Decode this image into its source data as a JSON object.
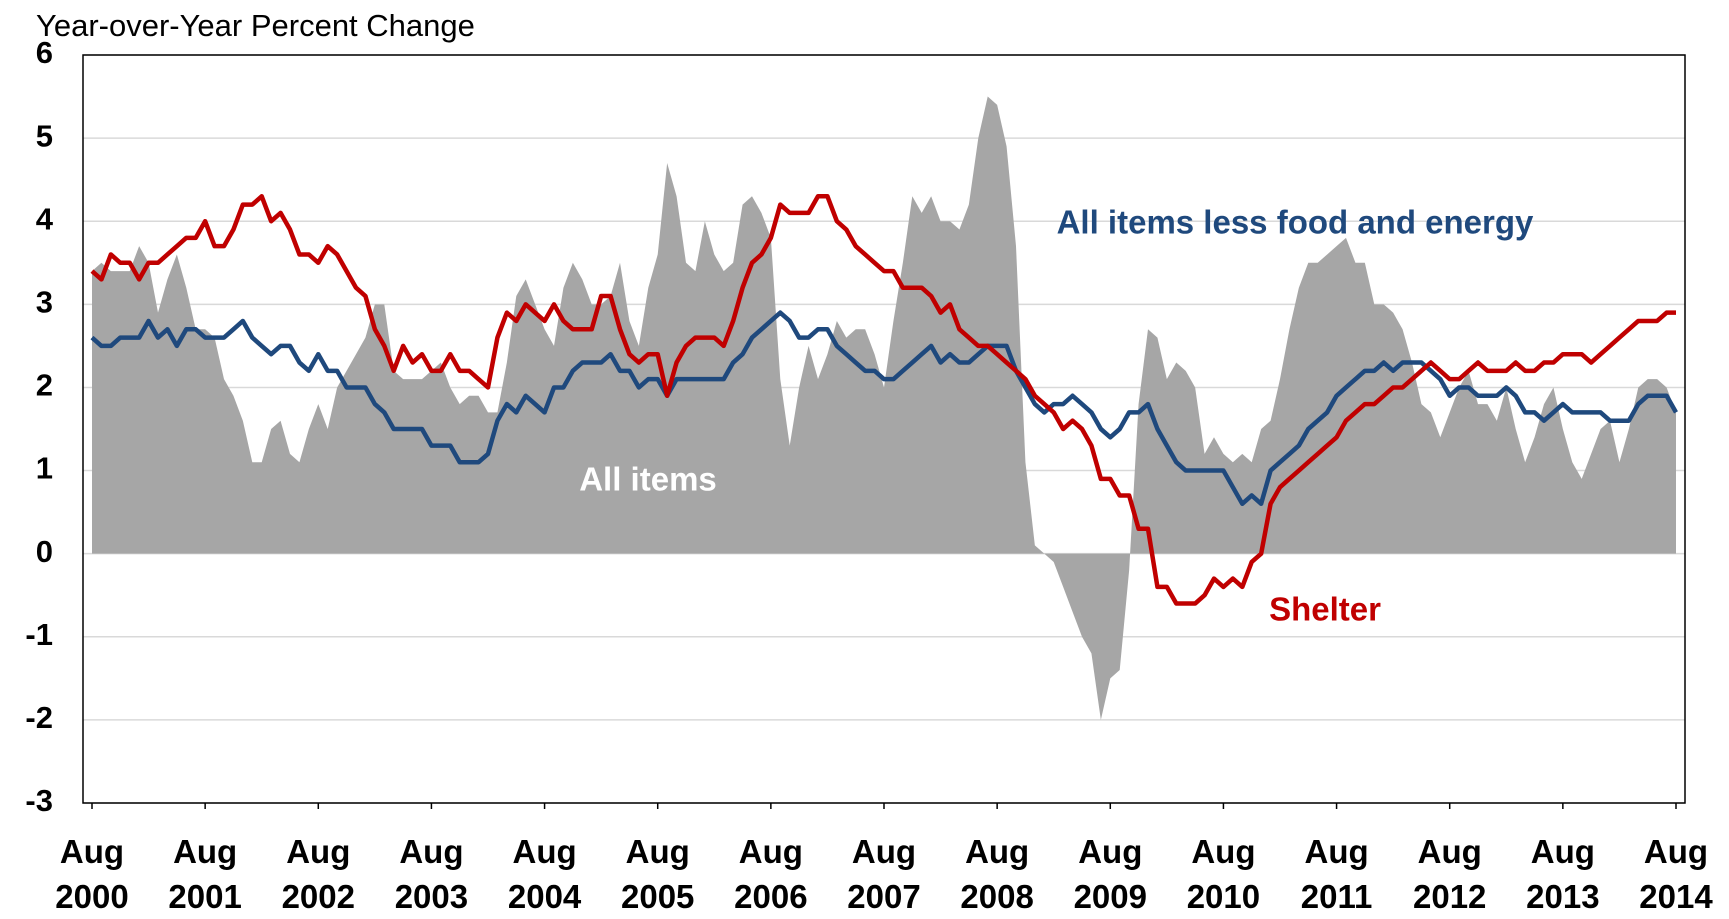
{
  "chart_data": {
    "type": "line",
    "y_axis_label": "Year-over-Year Percent Change",
    "x": [
      "Aug 2000",
      "Sep 2000",
      "Oct 2000",
      "Nov 2000",
      "Dec 2000",
      "Jan 2001",
      "Feb 2001",
      "Mar 2001",
      "Apr 2001",
      "May 2001",
      "Jun 2001",
      "Jul 2001",
      "Aug 2001",
      "Sep 2001",
      "Oct 2001",
      "Nov 2001",
      "Dec 2001",
      "Jan 2002",
      "Feb 2002",
      "Mar 2002",
      "Apr 2002",
      "May 2002",
      "Jun 2002",
      "Jul 2002",
      "Aug 2002",
      "Sep 2002",
      "Oct 2002",
      "Nov 2002",
      "Dec 2002",
      "Jan 2003",
      "Feb 2003",
      "Mar 2003",
      "Apr 2003",
      "May 2003",
      "Jun 2003",
      "Jul 2003",
      "Aug 2003",
      "Sep 2003",
      "Oct 2003",
      "Nov 2003",
      "Dec 2003",
      "Jan 2004",
      "Feb 2004",
      "Mar 2004",
      "Apr 2004",
      "May 2004",
      "Jun 2004",
      "Jul 2004",
      "Aug 2004",
      "Sep 2004",
      "Oct 2004",
      "Nov 2004",
      "Dec 2004",
      "Jan 2005",
      "Feb 2005",
      "Mar 2005",
      "Apr 2005",
      "May 2005",
      "Jun 2005",
      "Jul 2005",
      "Aug 2005",
      "Sep 2005",
      "Oct 2005",
      "Nov 2005",
      "Dec 2005",
      "Jan 2006",
      "Feb 2006",
      "Mar 2006",
      "Apr 2006",
      "May 2006",
      "Jun 2006",
      "Jul 2006",
      "Aug 2006",
      "Sep 2006",
      "Oct 2006",
      "Nov 2006",
      "Dec 2006",
      "Jan 2007",
      "Feb 2007",
      "Mar 2007",
      "Apr 2007",
      "May 2007",
      "Jun 2007",
      "Jul 2007",
      "Aug 2007",
      "Sep 2007",
      "Oct 2007",
      "Nov 2007",
      "Dec 2007",
      "Jan 2008",
      "Feb 2008",
      "Mar 2008",
      "Apr 2008",
      "May 2008",
      "Jun 2008",
      "Jul 2008",
      "Aug 2008",
      "Sep 2008",
      "Oct 2008",
      "Nov 2008",
      "Dec 2008",
      "Jan 2009",
      "Feb 2009",
      "Mar 2009",
      "Apr 2009",
      "May 2009",
      "Jun 2009",
      "Jul 2009",
      "Aug 2009",
      "Sep 2009",
      "Oct 2009",
      "Nov 2009",
      "Dec 2009",
      "Jan 2010",
      "Feb 2010",
      "Mar 2010",
      "Apr 2010",
      "May 2010",
      "Jun 2010",
      "Jul 2010",
      "Aug 2010",
      "Sep 2010",
      "Oct 2010",
      "Nov 2010",
      "Dec 2010",
      "Jan 2011",
      "Feb 2011",
      "Mar 2011",
      "Apr 2011",
      "May 2011",
      "Jun 2011",
      "Jul 2011",
      "Aug 2011",
      "Sep 2011",
      "Oct 2011",
      "Nov 2011",
      "Dec 2011",
      "Jan 2012",
      "Feb 2012",
      "Mar 2012",
      "Apr 2012",
      "May 2012",
      "Jun 2012",
      "Jul 2012",
      "Aug 2012",
      "Sep 2012",
      "Oct 2012",
      "Nov 2012",
      "Dec 2012",
      "Jan 2013",
      "Feb 2013",
      "Mar 2013",
      "Apr 2013",
      "May 2013",
      "Jun 2013",
      "Jul 2013",
      "Aug 2013",
      "Sep 2013",
      "Oct 2013",
      "Nov 2013",
      "Dec 2013",
      "Jan 2014",
      "Feb 2014",
      "Mar 2014",
      "Apr 2014",
      "May 2014",
      "Jun 2014",
      "Jul 2014",
      "Aug 2014"
    ],
    "xticks": [
      "Aug 2000",
      "Aug 2001",
      "Aug 2002",
      "Aug 2003",
      "Aug 2004",
      "Aug 2005",
      "Aug 2006",
      "Aug 2007",
      "Aug 2008",
      "Aug 2009",
      "Aug 2010",
      "Aug 2011",
      "Aug 2012",
      "Aug 2013",
      "Aug 2014"
    ],
    "ylim": [
      -3,
      6
    ],
    "yticks": [
      -3,
      -2,
      -1,
      0,
      1,
      2,
      3,
      4,
      5,
      6
    ],
    "grid": true,
    "series": [
      {
        "name": "All items",
        "style": "area",
        "color": "#a6a6a6",
        "label_color": "#ffffff",
        "values": [
          3.4,
          3.5,
          3.4,
          3.4,
          3.4,
          3.7,
          3.5,
          2.9,
          3.3,
          3.6,
          3.2,
          2.7,
          2.7,
          2.6,
          2.1,
          1.9,
          1.6,
          1.1,
          1.1,
          1.5,
          1.6,
          1.2,
          1.1,
          1.5,
          1.8,
          1.5,
          2.0,
          2.2,
          2.4,
          2.6,
          3.0,
          3.0,
          2.2,
          2.1,
          2.1,
          2.1,
          2.2,
          2.3,
          2.0,
          1.8,
          1.9,
          1.9,
          1.7,
          1.7,
          2.3,
          3.1,
          3.3,
          3.0,
          2.7,
          2.5,
          3.2,
          3.5,
          3.3,
          3.0,
          3.0,
          3.1,
          3.5,
          2.8,
          2.5,
          3.2,
          3.6,
          4.7,
          4.3,
          3.5,
          3.4,
          4.0,
          3.6,
          3.4,
          3.5,
          4.2,
          4.3,
          4.1,
          3.8,
          2.1,
          1.3,
          2.0,
          2.5,
          2.1,
          2.4,
          2.8,
          2.6,
          2.7,
          2.7,
          2.4,
          2.0,
          2.8,
          3.5,
          4.3,
          4.1,
          4.3,
          4.0,
          4.0,
          3.9,
          4.2,
          5.0,
          5.5,
          5.4,
          4.9,
          3.7,
          1.1,
          0.1,
          0.0,
          -0.1,
          -0.4,
          -0.7,
          -1.0,
          -1.2,
          -2.0,
          -1.5,
          -1.4,
          -0.2,
          1.8,
          2.7,
          2.6,
          2.1,
          2.3,
          2.2,
          2.0,
          1.2,
          1.4,
          1.2,
          1.1,
          1.2,
          1.1,
          1.5,
          1.6,
          2.1,
          2.7,
          3.2,
          3.5,
          3.5,
          3.6,
          3.7,
          3.8,
          3.5,
          3.5,
          3.0,
          3.0,
          2.9,
          2.7,
          2.3,
          1.8,
          1.7,
          1.4,
          1.7,
          2.0,
          2.2,
          1.8,
          1.8,
          1.6,
          2.0,
          1.5,
          1.1,
          1.4,
          1.8,
          2.0,
          1.5,
          1.1,
          0.9,
          1.2,
          1.5,
          1.6,
          1.1,
          1.5,
          2.0,
          2.1,
          2.1,
          2.0,
          1.7
        ]
      },
      {
        "name": "All items less food and energy",
        "style": "line",
        "color": "#1f497d",
        "label_color": "#1f497d",
        "values": [
          2.6,
          2.5,
          2.5,
          2.6,
          2.6,
          2.6,
          2.8,
          2.6,
          2.7,
          2.5,
          2.7,
          2.7,
          2.6,
          2.6,
          2.6,
          2.7,
          2.8,
          2.6,
          2.5,
          2.4,
          2.5,
          2.5,
          2.3,
          2.2,
          2.4,
          2.2,
          2.2,
          2.0,
          2.0,
          2.0,
          1.8,
          1.7,
          1.5,
          1.5,
          1.5,
          1.5,
          1.3,
          1.3,
          1.3,
          1.1,
          1.1,
          1.1,
          1.2,
          1.6,
          1.8,
          1.7,
          1.9,
          1.8,
          1.7,
          2.0,
          2.0,
          2.2,
          2.3,
          2.3,
          2.3,
          2.4,
          2.2,
          2.2,
          2.0,
          2.1,
          2.1,
          1.9,
          2.1,
          2.1,
          2.1,
          2.1,
          2.1,
          2.1,
          2.3,
          2.4,
          2.6,
          2.7,
          2.8,
          2.9,
          2.8,
          2.6,
          2.6,
          2.7,
          2.7,
          2.5,
          2.4,
          2.3,
          2.2,
          2.2,
          2.1,
          2.1,
          2.2,
          2.3,
          2.4,
          2.5,
          2.3,
          2.4,
          2.3,
          2.3,
          2.4,
          2.5,
          2.5,
          2.5,
          2.2,
          2.0,
          1.8,
          1.7,
          1.8,
          1.8,
          1.9,
          1.8,
          1.7,
          1.5,
          1.4,
          1.5,
          1.7,
          1.7,
          1.8,
          1.5,
          1.3,
          1.1,
          1.0,
          1.0,
          1.0,
          1.0,
          1.0,
          0.8,
          0.6,
          0.7,
          0.6,
          1.0,
          1.1,
          1.2,
          1.3,
          1.5,
          1.6,
          1.7,
          1.9,
          2.0,
          2.1,
          2.2,
          2.2,
          2.3,
          2.2,
          2.3,
          2.3,
          2.3,
          2.2,
          2.1,
          1.9,
          2.0,
          2.0,
          1.9,
          1.9,
          1.9,
          2.0,
          1.9,
          1.7,
          1.7,
          1.6,
          1.7,
          1.8,
          1.7,
          1.7,
          1.7,
          1.7,
          1.6,
          1.6,
          1.6,
          1.8,
          1.9,
          1.9,
          1.9,
          1.7
        ]
      },
      {
        "name": "Shelter",
        "style": "line",
        "color": "#c00000",
        "label_color": "#c00000",
        "values": [
          3.4,
          3.3,
          3.6,
          3.5,
          3.5,
          3.3,
          3.5,
          3.5,
          3.6,
          3.7,
          3.8,
          3.8,
          4.0,
          3.7,
          3.7,
          3.9,
          4.2,
          4.2,
          4.3,
          4.0,
          4.1,
          3.9,
          3.6,
          3.6,
          3.5,
          3.7,
          3.6,
          3.4,
          3.2,
          3.1,
          2.7,
          2.5,
          2.2,
          2.5,
          2.3,
          2.4,
          2.2,
          2.2,
          2.4,
          2.2,
          2.2,
          2.1,
          2.0,
          2.6,
          2.9,
          2.8,
          3.0,
          2.9,
          2.8,
          3.0,
          2.8,
          2.7,
          2.7,
          2.7,
          3.1,
          3.1,
          2.7,
          2.4,
          2.3,
          2.4,
          2.4,
          1.9,
          2.3,
          2.5,
          2.6,
          2.6,
          2.6,
          2.5,
          2.8,
          3.2,
          3.5,
          3.6,
          3.8,
          4.2,
          4.1,
          4.1,
          4.1,
          4.3,
          4.3,
          4.0,
          3.9,
          3.7,
          3.6,
          3.5,
          3.4,
          3.4,
          3.2,
          3.2,
          3.2,
          3.1,
          2.9,
          3.0,
          2.7,
          2.6,
          2.5,
          2.5,
          2.4,
          2.3,
          2.2,
          2.1,
          1.9,
          1.8,
          1.7,
          1.5,
          1.6,
          1.5,
          1.3,
          0.9,
          0.9,
          0.7,
          0.7,
          0.3,
          0.3,
          -0.4,
          -0.4,
          -0.6,
          -0.6,
          -0.6,
          -0.5,
          -0.3,
          -0.4,
          -0.3,
          -0.4,
          -0.1,
          0.0,
          0.6,
          0.8,
          0.9,
          1.0,
          1.1,
          1.2,
          1.3,
          1.4,
          1.6,
          1.7,
          1.8,
          1.8,
          1.9,
          2.0,
          2.0,
          2.1,
          2.2,
          2.3,
          2.2,
          2.1,
          2.1,
          2.2,
          2.3,
          2.2,
          2.2,
          2.2,
          2.3,
          2.2,
          2.2,
          2.3,
          2.3,
          2.4,
          2.4,
          2.4,
          2.3,
          2.4,
          2.5,
          2.6,
          2.7,
          2.8,
          2.8,
          2.8,
          2.9,
          2.9
        ]
      }
    ]
  }
}
